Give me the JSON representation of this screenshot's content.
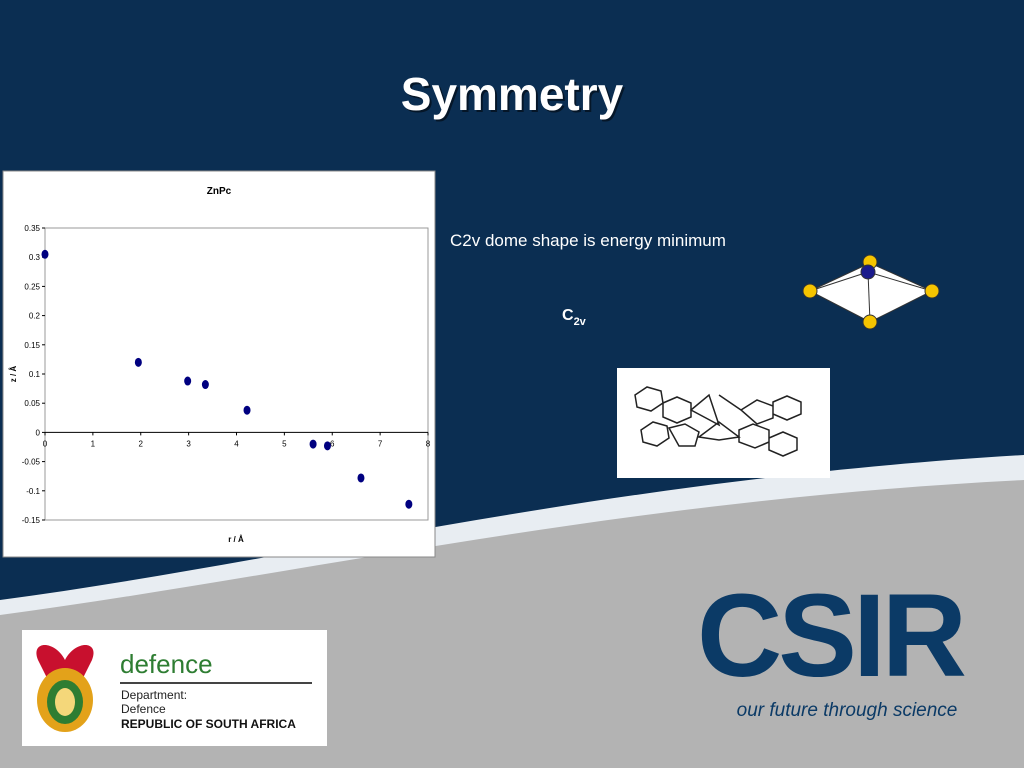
{
  "title": "Symmetry",
  "caption": "C2v dome shape is energy minimum",
  "symmetry_label": {
    "main": "C",
    "sub": "2v"
  },
  "defence_logo": {
    "name": "defence",
    "line1": "Department:",
    "line2": "Defence",
    "line3": "REPUBLIC OF SOUTH AFRICA"
  },
  "csir_logo": {
    "name": "CSIR",
    "tagline": "our future through science"
  },
  "chart_data": {
    "type": "scatter",
    "title": "ZnPc",
    "x_label": "r / Å",
    "y_label": "z / Å",
    "x": [
      0,
      1.95,
      2.98,
      3.35,
      4.22,
      5.6,
      5.9,
      6.6,
      7.6
    ],
    "values": [
      0.305,
      0.12,
      0.088,
      0.082,
      0.038,
      -0.02,
      -0.023,
      -0.078,
      -0.123
    ],
    "color": "#000080",
    "xlim": [
      0,
      8
    ],
    "xticks": [
      0,
      1,
      2,
      3,
      4,
      5,
      6,
      7,
      8
    ],
    "ylim": [
      -0.15,
      0.35
    ],
    "yticks": [
      0.35,
      0.3,
      0.25,
      0.2,
      0.15,
      0.1,
      0.05,
      0,
      -0.05,
      -0.1,
      -0.15
    ]
  }
}
